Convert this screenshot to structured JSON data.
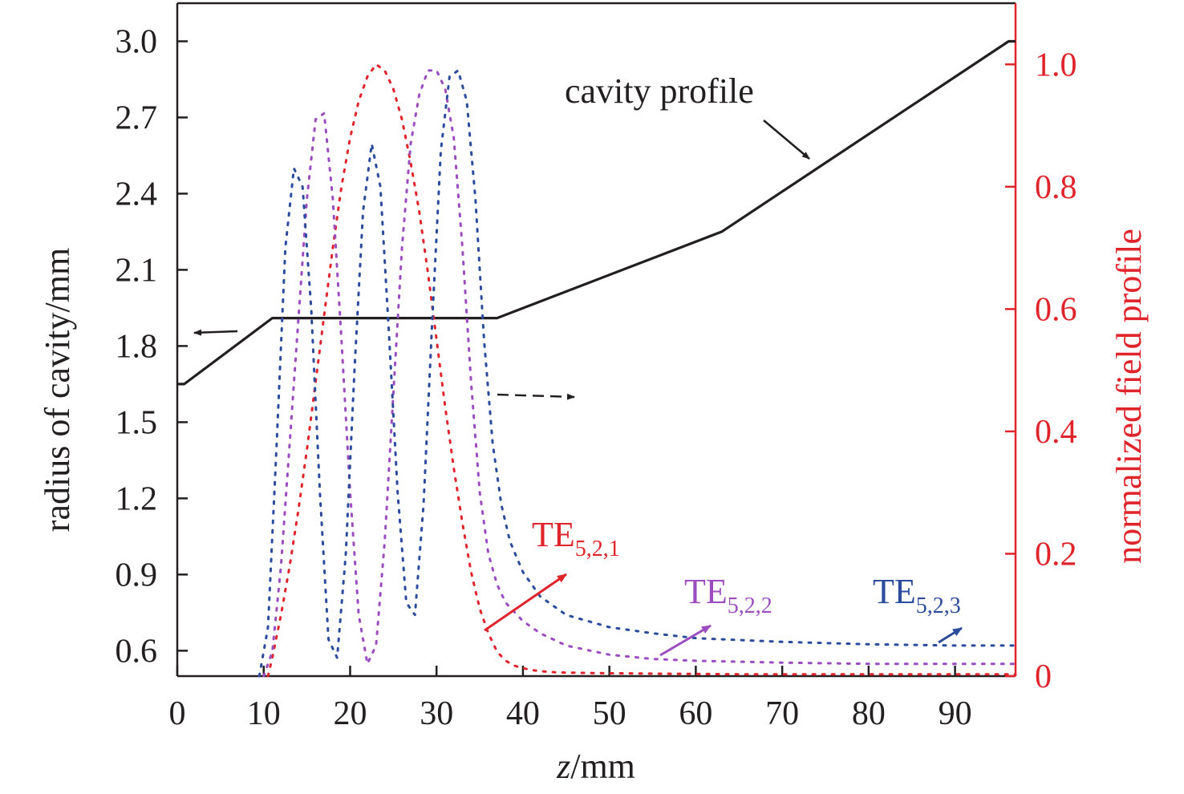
{
  "chart_data": {
    "type": "line",
    "xlabel_italic": "z",
    "xlabel_rest": "/mm",
    "ylabel_left": "radius of cavity/mm",
    "ylabel_right": "normalized field profile",
    "xlim": [
      0,
      97
    ],
    "ylim_left": [
      0.5,
      3.15
    ],
    "ylim_right": [
      0,
      1.1
    ],
    "x_ticks": [
      0,
      10,
      20,
      30,
      40,
      50,
      60,
      70,
      80,
      90
    ],
    "y_ticks_left": [
      "0.6",
      "0.9",
      "1.2",
      "1.5",
      "1.8",
      "2.1",
      "2.4",
      "2.7",
      "3.0"
    ],
    "y_ticks_right": [
      "0",
      "0.2",
      "0.4",
      "0.6",
      "0.8",
      "1.0"
    ],
    "colors": {
      "axis": "#231f20",
      "right_axis": "#e0242b",
      "TE521": "#e0242b",
      "TE522": "#9b4dbf",
      "TE523": "#2b4c9c"
    },
    "series": [
      {
        "name": "cavity profile",
        "axis": "left",
        "x": [
          0,
          0.8,
          11,
          37,
          63,
          96.2,
          97
        ],
        "y": [
          1.65,
          1.65,
          1.91,
          1.91,
          2.25,
          3.0,
          3.0
        ]
      },
      {
        "key": "TE521",
        "axis": "right",
        "x": [
          10.5,
          11,
          12,
          13,
          14,
          15,
          16,
          17,
          18,
          19,
          20,
          21,
          22,
          23,
          24,
          25,
          26,
          27,
          28,
          29,
          30,
          31,
          32,
          33,
          34,
          35,
          36,
          37,
          38,
          39,
          40,
          41,
          42,
          44,
          48,
          55,
          65,
          75,
          85,
          97
        ],
        "y": [
          0.0,
          0.03,
          0.1,
          0.18,
          0.27,
          0.37,
          0.48,
          0.59,
          0.7,
          0.8,
          0.88,
          0.94,
          0.98,
          1.0,
          0.99,
          0.96,
          0.91,
          0.84,
          0.76,
          0.66,
          0.55,
          0.44,
          0.34,
          0.25,
          0.17,
          0.11,
          0.07,
          0.04,
          0.025,
          0.017,
          0.013,
          0.01,
          0.008,
          0.006,
          0.005,
          0.004,
          0.003,
          0.003,
          0.003,
          0.003
        ]
      },
      {
        "key": "TE522",
        "axis": "right",
        "x": [
          10,
          11,
          12,
          13,
          14,
          15,
          16,
          17,
          18,
          19,
          20,
          21,
          22,
          23,
          24,
          25,
          26,
          27,
          28,
          29,
          30,
          31,
          32,
          33,
          34,
          35,
          36,
          37,
          38,
          40,
          42,
          45,
          50,
          55,
          60,
          70,
          80,
          90,
          97
        ],
        "y": [
          0.0,
          0.04,
          0.18,
          0.38,
          0.58,
          0.78,
          0.91,
          0.92,
          0.78,
          0.55,
          0.3,
          0.1,
          0.02,
          0.05,
          0.22,
          0.46,
          0.7,
          0.87,
          0.95,
          0.99,
          0.99,
          0.96,
          0.88,
          0.7,
          0.48,
          0.3,
          0.2,
          0.15,
          0.12,
          0.09,
          0.07,
          0.05,
          0.035,
          0.028,
          0.025,
          0.022,
          0.02,
          0.02,
          0.02
        ]
      },
      {
        "key": "TE523",
        "axis": "right",
        "x": [
          9.5,
          10.5,
          11.5,
          12.5,
          13.5,
          14.5,
          15.5,
          16.5,
          17.5,
          18.5,
          19.5,
          20.5,
          21.5,
          22.5,
          23.5,
          24.5,
          25.5,
          26.5,
          27.5,
          28.5,
          29.5,
          30.5,
          31.5,
          32.5,
          33.5,
          34.5,
          35.5,
          36.5,
          37.5,
          38.5,
          40,
          42,
          45,
          50,
          55,
          60,
          70,
          80,
          90,
          97
        ],
        "y": [
          0.0,
          0.08,
          0.38,
          0.7,
          0.83,
          0.8,
          0.6,
          0.3,
          0.06,
          0.03,
          0.2,
          0.5,
          0.76,
          0.87,
          0.8,
          0.56,
          0.3,
          0.12,
          0.1,
          0.28,
          0.58,
          0.86,
          0.98,
          0.99,
          0.94,
          0.78,
          0.55,
          0.38,
          0.28,
          0.22,
          0.17,
          0.13,
          0.1,
          0.08,
          0.07,
          0.062,
          0.056,
          0.052,
          0.05,
          0.05
        ]
      }
    ],
    "annotations": {
      "cavity_profile": "cavity profile",
      "te521_base": "TE",
      "te521_sub": "5,2,1",
      "te522_base": "TE",
      "te522_sub": "5,2,2",
      "te523_base": "TE",
      "te523_sub": "5,2,3"
    }
  }
}
